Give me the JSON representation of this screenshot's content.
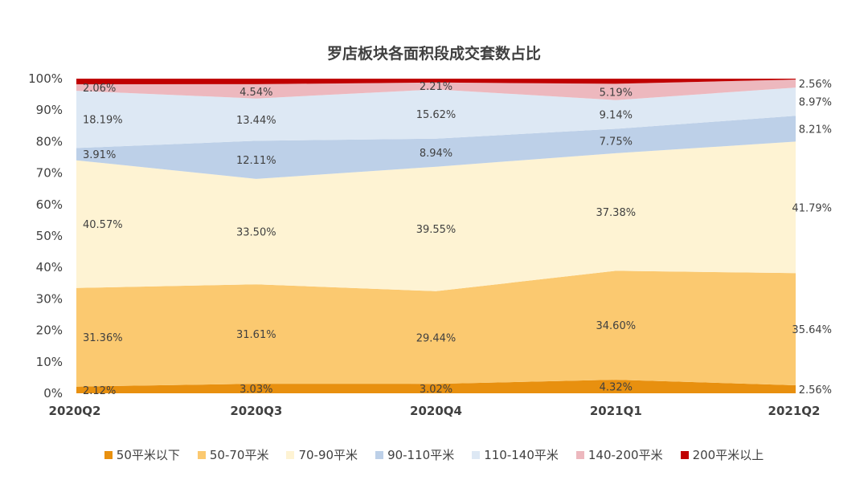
{
  "chart_data": {
    "type": "area",
    "stacked": true,
    "percent": true,
    "title": "罗店板块各面积段成交套数占比",
    "xlabel": "",
    "ylabel": "",
    "categories": [
      "2020Q2",
      "2020Q3",
      "2020Q4",
      "2021Q1",
      "2021Q2"
    ],
    "ylim": [
      0,
      100
    ],
    "yticks": [
      "0%",
      "10%",
      "20%",
      "30%",
      "40%",
      "50%",
      "60%",
      "70%",
      "80%",
      "90%",
      "100%"
    ],
    "legend_position": "bottom",
    "series": [
      {
        "name": "50平米以下",
        "color": "#E8900F",
        "values": [
          2.12,
          3.03,
          3.02,
          4.32,
          2.56
        ],
        "labels": [
          "2.12%",
          "3.03%",
          "3.02%",
          "4.32%",
          "2.56%"
        ]
      },
      {
        "name": "50-70平米",
        "color": "#FBC970",
        "values": [
          31.36,
          31.61,
          29.44,
          34.6,
          35.64
        ],
        "labels": [
          "31.36%",
          "31.61%",
          "29.44%",
          "34.60%",
          "35.64%"
        ]
      },
      {
        "name": "70-90平米",
        "color": "#FEF3D3",
        "values": [
          40.57,
          33.5,
          39.55,
          37.38,
          41.79
        ],
        "labels": [
          "40.57%",
          "33.50%",
          "39.55%",
          "37.38%",
          "41.79%"
        ]
      },
      {
        "name": "90-110平米",
        "color": "#BDD0E8",
        "values": [
          3.91,
          12.11,
          8.94,
          7.75,
          8.21
        ],
        "labels": [
          "3.91%",
          "12.11%",
          "8.94%",
          "7.75%",
          "8.21%"
        ]
      },
      {
        "name": "110-140平米",
        "color": "#DDE8F4",
        "values": [
          18.19,
          13.44,
          15.62,
          9.14,
          8.97
        ],
        "labels": [
          "18.19%",
          "13.44%",
          "15.62%",
          "9.14%",
          "8.97%"
        ]
      },
      {
        "name": "140-200平米",
        "color": "#EDB8BE",
        "values": [
          2.06,
          4.54,
          2.21,
          5.19,
          2.56
        ],
        "labels": [
          "2.06%",
          "4.54%",
          "2.21%",
          "5.19%",
          "2.56%"
        ]
      },
      {
        "name": "200平米以上",
        "color": "#C00000",
        "values": [
          1.79,
          1.77,
          1.22,
          1.62,
          0.27
        ],
        "labels": [
          "",
          "",
          "",
          "",
          ""
        ]
      }
    ]
  }
}
